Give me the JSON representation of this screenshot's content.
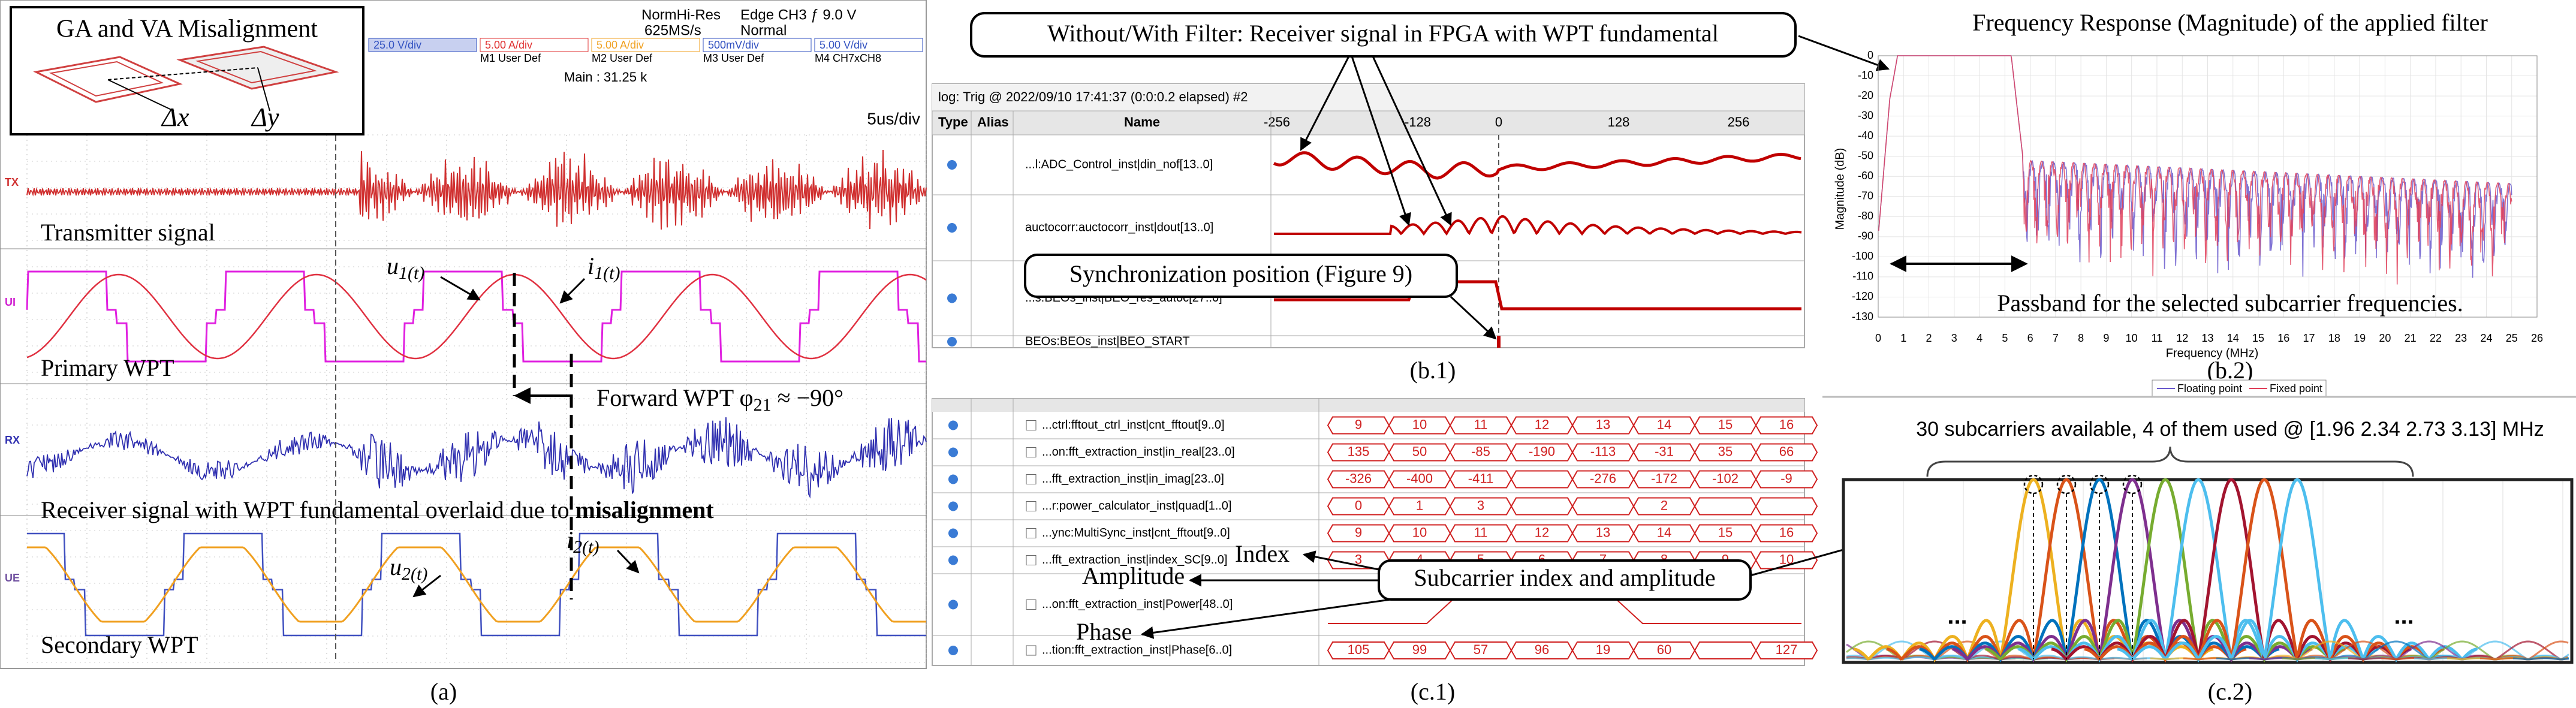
{
  "panel_a": {
    "inset_title": "GA and VA Misalignment",
    "dx": "Δx",
    "dy": "Δy",
    "scope_header": {
      "acq": "NormHi-Res",
      "rate": "625MS/s",
      "trigger": "Edge CH3 ƒ 9.0 V",
      "mode": "Normal",
      "main": "Main : 31.25 k",
      "timebase": "5us/div",
      "channels": [
        "25.0 V/div",
        "5.00 A/div",
        "5.00 A/div",
        "500mV/div",
        "5.00 V/div"
      ],
      "maths": [
        "M1 User Def",
        "M2 User Def",
        "M3 User Def",
        "M4 CH7xCH8"
      ]
    },
    "trace_tags": [
      "TX",
      "UI",
      "RX",
      "UE"
    ],
    "transmitter": "Transmitter signal",
    "primary": "Primary WPT",
    "u1": {
      "base": "u",
      "sub": "1(t)"
    },
    "i1": {
      "base": "i",
      "sub": "1(t)"
    },
    "forward": {
      "text": "Forward WPT φ",
      "sub": "21",
      "tail": " ≈ −90°"
    },
    "receiver": {
      "text": "Receiver signal with WPT fundamental overlaid due to ",
      "bold": "misalignment"
    },
    "u2": {
      "base": "u",
      "sub": "2(t)"
    },
    "i2": {
      "base": "i",
      "sub": "2(t)"
    },
    "secondary": "Secondary WPT",
    "caption": "(a)"
  },
  "b1": {
    "title": "Without/With Filter: Receiver signal in FPGA with WPT fundamental",
    "log": "log: Trig @ 2022/09/10 17:41:37 (0:0:0.2 elapsed) #2",
    "headers": [
      "Type",
      "Alias",
      "Name"
    ],
    "axis": [
      "-256",
      "-128",
      "0",
      "128",
      "256"
    ],
    "rows": [
      "...l:ADC_Control_inst|din_nof[13..0]",
      "auctocorr:auctocorr_inst|dout[13..0]",
      "...s:BEOs_inst|BEO_res_autoc[27..0]",
      "BEOs:BEOs_inst|BEO_START"
    ],
    "sync": "Synchronization position (Figure 9)",
    "caption": "(b.1)"
  },
  "c1": {
    "rows": [
      {
        "name": "...ctrl:fftout_ctrl_inst|cnt_fftout[9..0]",
        "values": [
          "9",
          "10",
          "11",
          "12",
          "13",
          "14",
          "15",
          "16"
        ]
      },
      {
        "name": "...on:fft_extraction_inst|in_real[23..0]",
        "values": [
          "135",
          "50",
          "-85",
          "-190",
          "-113",
          "-31",
          "35",
          "66"
        ]
      },
      {
        "name": "...fft_extraction_inst|in_imag[23..0]",
        "values": [
          "-326",
          "-400",
          "-411",
          "",
          "-276",
          "-172",
          "-102",
          "-9"
        ]
      },
      {
        "name": "...r:power_calculator_inst|quad[1..0]",
        "values": [
          "0",
          "1",
          "3",
          "",
          "",
          "2",
          "",
          ""
        ]
      },
      {
        "name": "...ync:MultiSync_inst|cnt_fftout[9..0]",
        "values": [
          "9",
          "10",
          "11",
          "12",
          "13",
          "14",
          "15",
          "16"
        ]
      },
      {
        "name": "...fft_extraction_inst|index_SC[9..0]",
        "values": [
          "3",
          "4",
          "5",
          "6",
          "7",
          "8",
          "9",
          "10"
        ]
      },
      {
        "name": "...on:fft_extraction_inst|Power[48..0]",
        "values": []
      },
      {
        "name": "...tion:fft_extraction_inst|Phase[6..0]",
        "values": [
          "105",
          "99",
          "57",
          "96",
          "19",
          "60",
          "",
          "127"
        ]
      }
    ],
    "index": "Index",
    "amplitude": "Amplitude",
    "phase": "Phase",
    "box": "Subcarrier index and amplitude",
    "caption": "(c.1)"
  },
  "b2": {
    "title": "Frequency Response (Magnitude) of the applied filter",
    "ylabel": "Magnitude (dB)",
    "xlabel": "Frequency (MHz)",
    "xlim": [
      0,
      26
    ],
    "ylim": [
      -130,
      0
    ],
    "xticks": [
      0,
      1,
      2,
      3,
      4,
      5,
      6,
      7,
      8,
      9,
      10,
      11,
      12,
      13,
      14,
      15,
      16,
      17,
      18,
      19,
      20,
      21,
      22,
      23,
      24,
      25,
      26
    ],
    "yticks": [
      0,
      -10,
      -20,
      -30,
      -40,
      -50,
      -60,
      -70,
      -80,
      -90,
      -100,
      -110,
      -120,
      -130
    ],
    "legend": [
      "Floating point",
      "Fixed point"
    ],
    "passband": "Passband for the selected subcarrier frequencies.",
    "caption": "(b.2)"
  },
  "c2": {
    "title": "30 subcarriers available, 4 of them used @ [1.96 2.34 2.73 3.13] MHz",
    "dots": "...",
    "caption": "(c.2)"
  }
}
